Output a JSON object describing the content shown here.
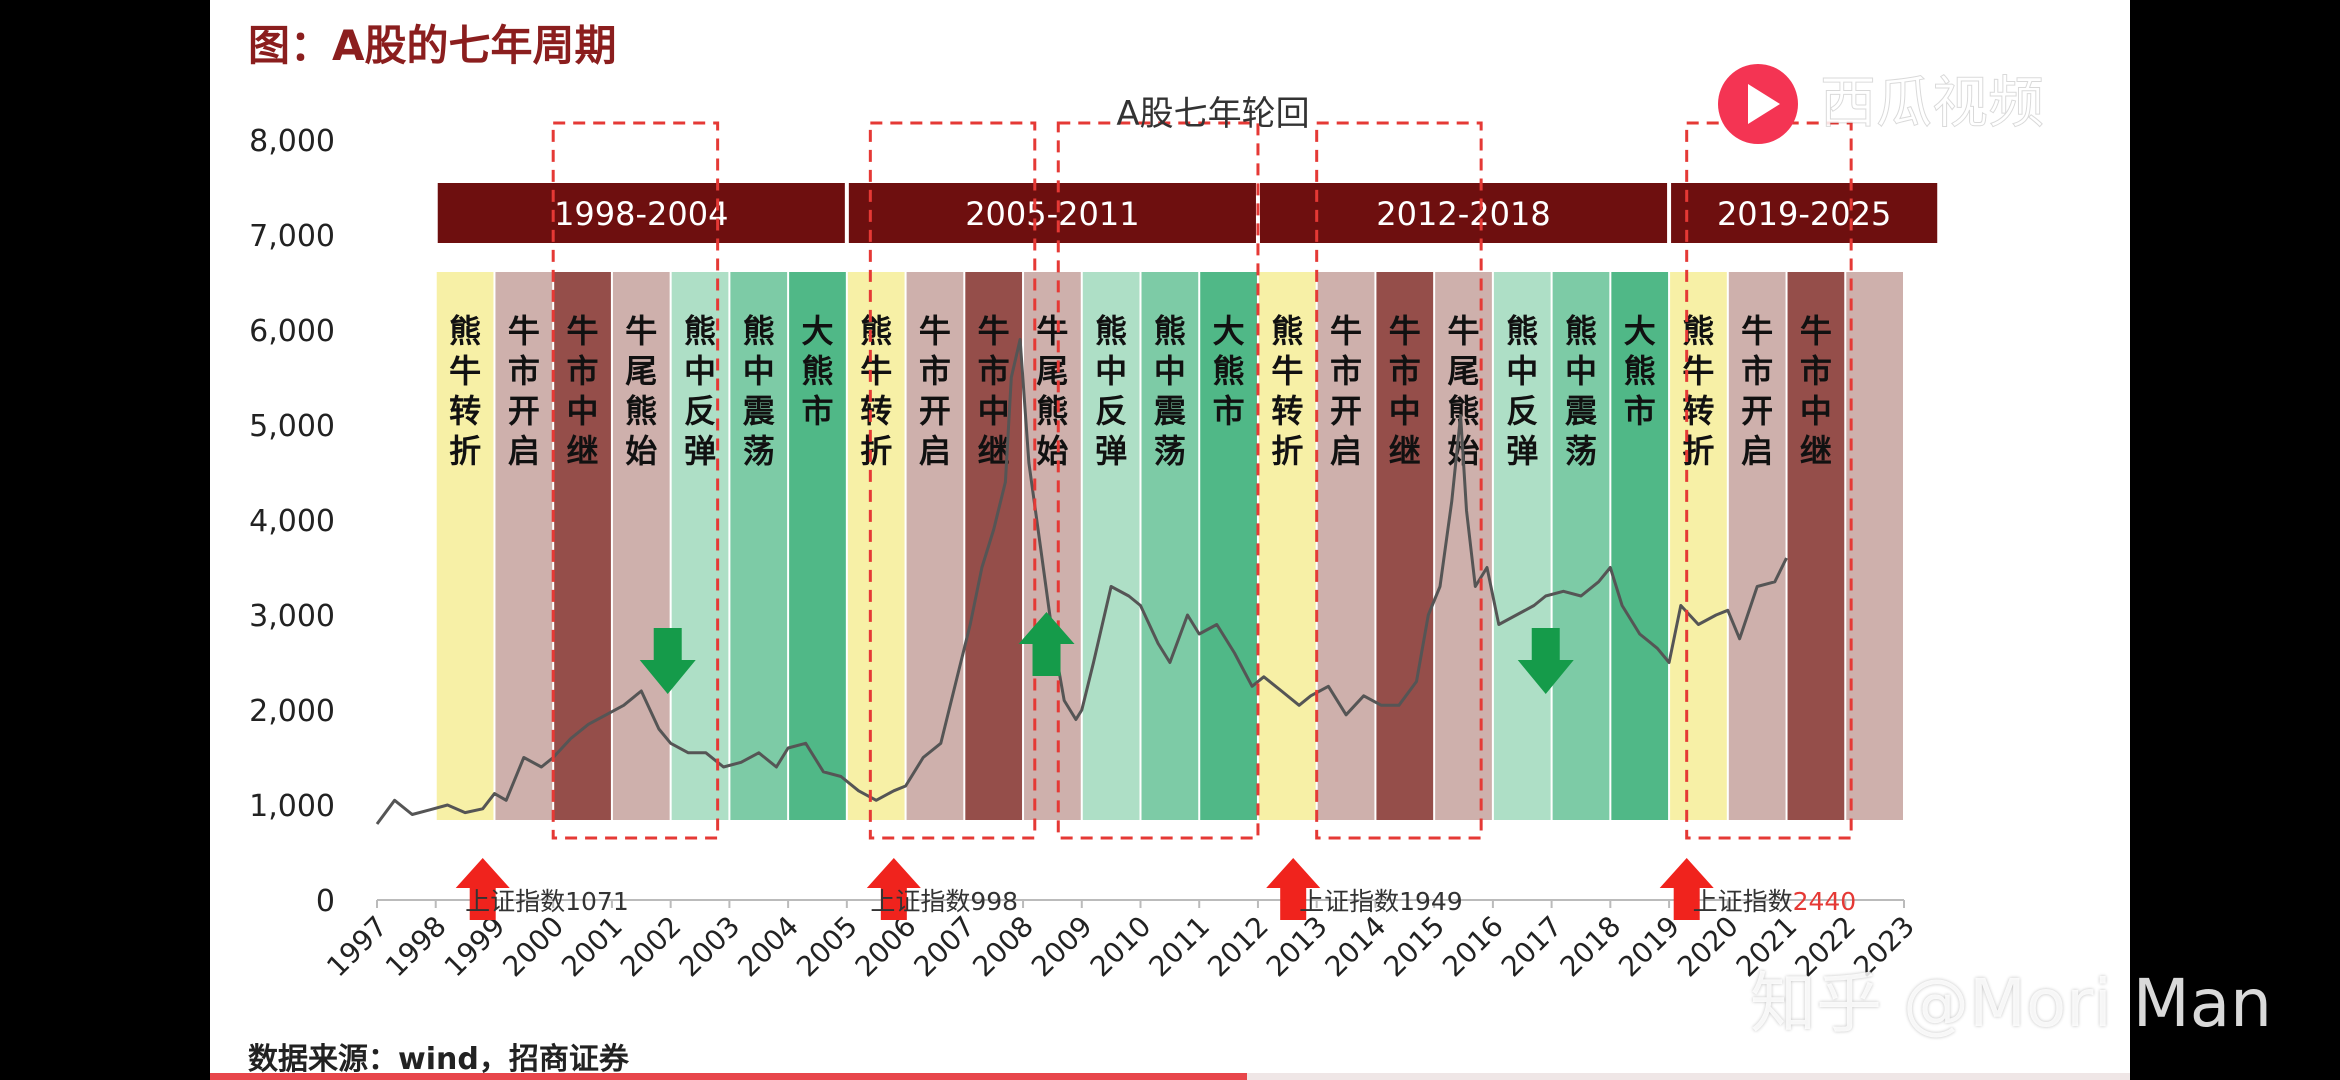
{
  "page": {
    "title": "图：A股的七年周期",
    "source": "数据来源：wind，招商证券",
    "playback_progress": 0.54
  },
  "watermarks": {
    "top": "西瓜视频",
    "bottom": "知乎 @Mori Man"
  },
  "colors": {
    "header_band": "#6e0f0f",
    "phase_bear_to_bull": "#f6ee9c",
    "phase_bull_start": "#c9a7a3",
    "phase_bull_mid": "#8a3b36",
    "phase_bull_end": "#c9a7a3",
    "phase_rebound": "#a5dcc0",
    "phase_oscillation": "#6fc59c",
    "phase_big_bear": "#3db07a",
    "line": "#555555",
    "dashed_box": "#e53935",
    "up_arrow": "#f0231d",
    "green_arrow": "#159b4a"
  },
  "chart_data": {
    "type": "line",
    "title": "A股七年轮回",
    "xlabel": "",
    "ylabel": "",
    "x_ticks": [
      "1997",
      "1998",
      "1999",
      "2000",
      "2001",
      "2002",
      "2003",
      "2004",
      "2005",
      "2006",
      "2007",
      "2008",
      "2009",
      "2010",
      "2011",
      "2012",
      "2013",
      "2014",
      "2015",
      "2016",
      "2017",
      "2018",
      "2019",
      "2020",
      "2021",
      "2022",
      "2023"
    ],
    "y_ticks": [
      "0",
      "1,000",
      "2,000",
      "3,000",
      "4,000",
      "5,000",
      "6,000",
      "7,000",
      "8,000"
    ],
    "xlim": [
      1997,
      2023
    ],
    "ylim": [
      0,
      8000
    ],
    "grid": false,
    "cycles": [
      {
        "label": "1998-2004",
        "start": 1998,
        "end": 2005
      },
      {
        "label": "2005-2011",
        "start": 2005,
        "end": 2012
      },
      {
        "label": "2012-2018",
        "start": 2012,
        "end": 2019
      },
      {
        "label": "2019-2025",
        "start": 2019,
        "end": 2023.6
      }
    ],
    "phases": [
      {
        "label": "熊牛转折",
        "start": 1998,
        "end": 1999,
        "kind": "bear_to_bull"
      },
      {
        "label": "牛市开启",
        "start": 1999,
        "end": 2000,
        "kind": "bull_start"
      },
      {
        "label": "牛市中继",
        "start": 2000,
        "end": 2001,
        "kind": "bull_mid"
      },
      {
        "label": "牛尾熊始",
        "start": 2001,
        "end": 2002,
        "kind": "bull_end"
      },
      {
        "label": "熊中反弹",
        "start": 2002,
        "end": 2003,
        "kind": "rebound"
      },
      {
        "label": "熊中震荡",
        "start": 2003,
        "end": 2004,
        "kind": "oscillation"
      },
      {
        "label": "大熊市",
        "start": 2004,
        "end": 2005,
        "kind": "big_bear"
      },
      {
        "label": "熊牛转折",
        "start": 2005,
        "end": 2006,
        "kind": "bear_to_bull"
      },
      {
        "label": "牛市开启",
        "start": 2006,
        "end": 2007,
        "kind": "bull_start"
      },
      {
        "label": "牛市中继",
        "start": 2007,
        "end": 2008,
        "kind": "bull_mid"
      },
      {
        "label": "牛尾熊始",
        "start": 2008,
        "end": 2009,
        "kind": "bull_end"
      },
      {
        "label": "熊中反弹",
        "start": 2009,
        "end": 2010,
        "kind": "rebound"
      },
      {
        "label": "熊中震荡",
        "start": 2010,
        "end": 2011,
        "kind": "oscillation"
      },
      {
        "label": "大熊市",
        "start": 2011,
        "end": 2012,
        "kind": "big_bear"
      },
      {
        "label": "熊牛转折",
        "start": 2012,
        "end": 2013,
        "kind": "bear_to_bull"
      },
      {
        "label": "牛市开启",
        "start": 2013,
        "end": 2014,
        "kind": "bull_start"
      },
      {
        "label": "牛市中继",
        "start": 2014,
        "end": 2015,
        "kind": "bull_mid"
      },
      {
        "label": "牛尾熊始",
        "start": 2015,
        "end": 2016,
        "kind": "bull_end"
      },
      {
        "label": "熊中反弹",
        "start": 2016,
        "end": 2017,
        "kind": "rebound"
      },
      {
        "label": "熊中震荡",
        "start": 2017,
        "end": 2018,
        "kind": "oscillation"
      },
      {
        "label": "大熊市",
        "start": 2018,
        "end": 2019,
        "kind": "big_bear"
      },
      {
        "label": "熊牛转折",
        "start": 2019,
        "end": 2020,
        "kind": "bear_to_bull"
      },
      {
        "label": "牛市开启",
        "start": 2020,
        "end": 2021,
        "kind": "bull_start"
      },
      {
        "label": "牛市中继",
        "start": 2021,
        "end": 2022,
        "kind": "bull_mid"
      },
      {
        "label": "",
        "start": 2022,
        "end": 2023,
        "kind": "bull_end"
      }
    ],
    "dashed_boxes": [
      {
        "start": 2000,
        "end": 2002.8
      },
      {
        "start": 2005.4,
        "end": 2008.2
      },
      {
        "start": 2008.6,
        "end": 2012
      },
      {
        "start": 2013,
        "end": 2015.8
      },
      {
        "start": 2019.3,
        "end": 2022.1
      }
    ],
    "annotations": [
      {
        "prefix": "上证指数",
        "value": "1071",
        "x": 1998.5,
        "y": 750,
        "highlight": false
      },
      {
        "prefix": "上证指数",
        "value": "998",
        "x": 2005.4,
        "y": 750,
        "highlight": false
      },
      {
        "prefix": "上证指数",
        "value": "1949",
        "x": 2012.7,
        "y": 750,
        "highlight": false
      },
      {
        "prefix": "上证指数",
        "value": "2440",
        "x": 2019.4,
        "y": 750,
        "highlight": true
      }
    ],
    "up_arrows": [
      1998.8,
      2005.8,
      2012.6,
      2019.3
    ],
    "down_arrows": [
      2001.95,
      2016.9
    ],
    "green_up_arrows": [
      2008.4
    ],
    "series": [
      {
        "points": [
          [
            1997.0,
            800
          ],
          [
            1997.3,
            1050
          ],
          [
            1997.6,
            900
          ],
          [
            1997.9,
            950
          ],
          [
            1998.2,
            1000
          ],
          [
            1998.5,
            920
          ],
          [
            1998.8,
            960
          ],
          [
            1999.0,
            1120
          ],
          [
            1999.2,
            1050
          ],
          [
            1999.5,
            1500
          ],
          [
            1999.8,
            1400
          ],
          [
            2000.0,
            1500
          ],
          [
            2000.3,
            1700
          ],
          [
            2000.6,
            1850
          ],
          [
            2000.9,
            1950
          ],
          [
            2001.2,
            2050
          ],
          [
            2001.5,
            2200
          ],
          [
            2001.8,
            1800
          ],
          [
            2002.0,
            1650
          ],
          [
            2002.3,
            1550
          ],
          [
            2002.6,
            1550
          ],
          [
            2002.9,
            1400
          ],
          [
            2003.2,
            1450
          ],
          [
            2003.5,
            1550
          ],
          [
            2003.8,
            1400
          ],
          [
            2004.0,
            1600
          ],
          [
            2004.3,
            1650
          ],
          [
            2004.6,
            1350
          ],
          [
            2004.9,
            1300
          ],
          [
            2005.2,
            1150
          ],
          [
            2005.5,
            1050
          ],
          [
            2005.8,
            1150
          ],
          [
            2006.0,
            1200
          ],
          [
            2006.3,
            1500
          ],
          [
            2006.6,
            1650
          ],
          [
            2006.9,
            2400
          ],
          [
            2007.1,
            2900
          ],
          [
            2007.3,
            3500
          ],
          [
            2007.5,
            3900
          ],
          [
            2007.7,
            4400
          ],
          [
            2007.8,
            5500
          ],
          [
            2007.95,
            5900
          ],
          [
            2008.1,
            4600
          ],
          [
            2008.3,
            3700
          ],
          [
            2008.5,
            2800
          ],
          [
            2008.7,
            2100
          ],
          [
            2008.9,
            1900
          ],
          [
            2009.0,
            2000
          ],
          [
            2009.2,
            2500
          ],
          [
            2009.5,
            3300
          ],
          [
            2009.8,
            3200
          ],
          [
            2010.0,
            3100
          ],
          [
            2010.3,
            2700
          ],
          [
            2010.5,
            2500
          ],
          [
            2010.8,
            3000
          ],
          [
            2011.0,
            2800
          ],
          [
            2011.3,
            2900
          ],
          [
            2011.6,
            2600
          ],
          [
            2011.9,
            2250
          ],
          [
            2012.1,
            2350
          ],
          [
            2012.4,
            2200
          ],
          [
            2012.7,
            2050
          ],
          [
            2012.9,
            2150
          ],
          [
            2013.2,
            2250
          ],
          [
            2013.5,
            1950
          ],
          [
            2013.8,
            2150
          ],
          [
            2014.1,
            2050
          ],
          [
            2014.4,
            2050
          ],
          [
            2014.7,
            2300
          ],
          [
            2014.9,
            3000
          ],
          [
            2015.1,
            3300
          ],
          [
            2015.3,
            4200
          ],
          [
            2015.45,
            5100
          ],
          [
            2015.55,
            4100
          ],
          [
            2015.7,
            3300
          ],
          [
            2015.9,
            3500
          ],
          [
            2016.1,
            2900
          ],
          [
            2016.4,
            3000
          ],
          [
            2016.7,
            3100
          ],
          [
            2016.9,
            3200
          ],
          [
            2017.2,
            3250
          ],
          [
            2017.5,
            3200
          ],
          [
            2017.8,
            3350
          ],
          [
            2018.0,
            3500
          ],
          [
            2018.2,
            3100
          ],
          [
            2018.5,
            2800
          ],
          [
            2018.8,
            2650
          ],
          [
            2019.0,
            2500
          ],
          [
            2019.2,
            3100
          ],
          [
            2019.5,
            2900
          ],
          [
            2019.8,
            3000
          ],
          [
            2020.0,
            3050
          ],
          [
            2020.2,
            2750
          ],
          [
            2020.5,
            3300
          ],
          [
            2020.8,
            3350
          ],
          [
            2021.0,
            3600
          ]
        ]
      }
    ]
  }
}
